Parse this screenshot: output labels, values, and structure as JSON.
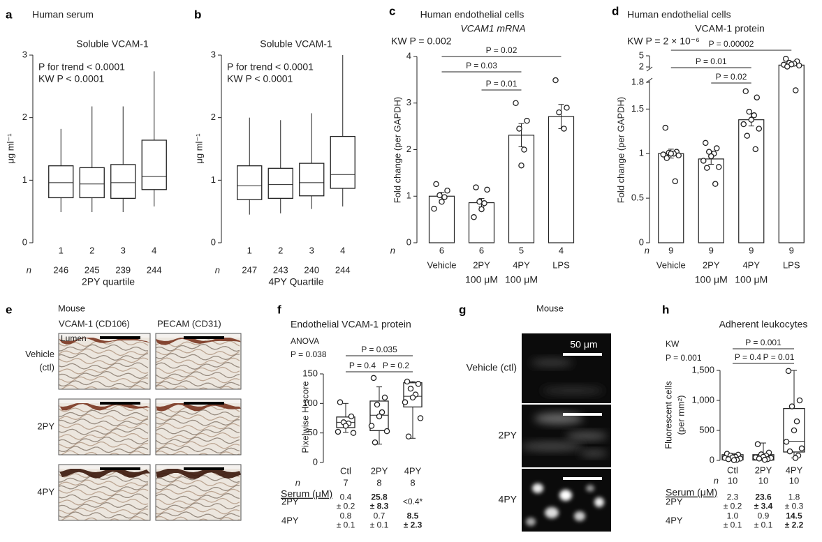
{
  "chart_data": [
    {
      "type": "box",
      "label": "a",
      "title": "Human serum",
      "subtitle": "Soluble VCAM-1",
      "annotations": [
        "P for trend < 0.0001",
        "KW P < 0.0001"
      ],
      "ylabel": "μg ml⁻¹",
      "ylim": [
        0,
        3
      ],
      "yticks": [
        0,
        1,
        2,
        3
      ],
      "categories": [
        "1",
        "2",
        "3",
        "4"
      ],
      "n_label": "n",
      "n": [
        246,
        245,
        239,
        244
      ],
      "xlabel": "2PY quartile",
      "boxes": [
        {
          "min": 0.49,
          "q1": 0.72,
          "median": 0.96,
          "q3": 1.23,
          "max": 1.82
        },
        {
          "min": 0.49,
          "q1": 0.72,
          "median": 0.94,
          "q3": 1.2,
          "max": 2.18
        },
        {
          "min": 0.49,
          "q1": 0.71,
          "median": 0.96,
          "q3": 1.25,
          "max": 2.18
        },
        {
          "min": 0.58,
          "q1": 0.85,
          "median": 1.06,
          "q3": 1.64,
          "max": 2.74
        }
      ]
    },
    {
      "type": "box",
      "label": "b",
      "subtitle": "Soluble VCAM-1",
      "annotations": [
        "P for trend < 0.0001",
        "KW P < 0.0001"
      ],
      "ylabel": "μg ml⁻¹",
      "ylim": [
        0,
        3
      ],
      "yticks": [
        0,
        1,
        2,
        3
      ],
      "categories": [
        "1",
        "2",
        "3",
        "4"
      ],
      "n_label": "n",
      "n": [
        247,
        243,
        240,
        244
      ],
      "xlabel": "4PY Quartile",
      "boxes": [
        {
          "min": 0.45,
          "q1": 0.69,
          "median": 0.91,
          "q3": 1.23,
          "max": 2.0
        },
        {
          "min": 0.47,
          "q1": 0.71,
          "median": 0.93,
          "q3": 1.19,
          "max": 1.96
        },
        {
          "min": 0.54,
          "q1": 0.75,
          "median": 0.96,
          "q3": 1.27,
          "max": 2.07
        },
        {
          "min": 0.58,
          "q1": 0.87,
          "median": 1.09,
          "q3": 1.7,
          "max": 3.0
        }
      ]
    },
    {
      "type": "bar",
      "label": "c",
      "title": "Human endothelial cells",
      "subtitle": "VCAM1 mRNA",
      "annotations": [
        "KW P = 0.002"
      ],
      "ylabel": "Fold change (per GAPDH)",
      "ylim": [
        0,
        4
      ],
      "yticks": [
        0,
        1,
        2,
        3,
        4
      ],
      "categories": [
        "Vehicle",
        "2PY",
        "4PY",
        "LPS"
      ],
      "doses": [
        null,
        "100 μM",
        "100 μM",
        null
      ],
      "n_label": "n",
      "n": [
        6,
        6,
        5,
        4
      ],
      "values": [
        1.0,
        0.86,
        2.31,
        2.71
      ],
      "errors": [
        0.08,
        0.09,
        0.25,
        0.26
      ],
      "points": [
        [
          1.26,
          1.12,
          1.02,
          0.98,
          0.88,
          0.73
        ],
        [
          1.19,
          1.14,
          0.88,
          0.85,
          0.72,
          0.55
        ],
        [
          3.0,
          2.62,
          2.45,
          2.0,
          1.66
        ],
        [
          3.49,
          2.9,
          2.8,
          2.45
        ]
      ],
      "comparisons": [
        {
          "between": [
            "Vehicle",
            "LPS"
          ],
          "label": "P = 0.02"
        },
        {
          "between": [
            "Vehicle",
            "4PY"
          ],
          "label": "P = 0.03"
        },
        {
          "between": [
            "2PY",
            "4PY"
          ],
          "label": "P = 0.01"
        }
      ]
    },
    {
      "type": "bar",
      "label": "d",
      "title": "Human endothelial cells",
      "subtitle": "VCAM-1 protein",
      "annotations": [
        "KW P = 2 × 10⁻⁶"
      ],
      "ylabel": "Fold change (per GAPDH)",
      "ylim": [
        0,
        5
      ],
      "ybreak": [
        1.8,
        2
      ],
      "yticks": [
        0,
        0.5,
        1,
        1.5,
        1.8,
        2,
        5
      ],
      "categories": [
        "Vehicle",
        "2PY",
        "4PY",
        "LPS"
      ],
      "doses": [
        null,
        "100 μM",
        "100 μM",
        null
      ],
      "n_label": "n",
      "n": [
        9,
        9,
        9,
        9
      ],
      "values": [
        1.0,
        0.94,
        1.38,
        2.5
      ],
      "errors": [
        0.05,
        0.06,
        0.07,
        0.3
      ],
      "points": [
        [
          1.29,
          1.02,
          1.01,
          1.0,
          1.0,
          0.99,
          0.98,
          0.95,
          0.69
        ],
        [
          1.12,
          1.06,
          1.02,
          1.0,
          0.97,
          0.92,
          0.85,
          0.84,
          0.66
        ],
        [
          1.7,
          1.63,
          1.47,
          1.43,
          1.38,
          1.33,
          1.28,
          1.2,
          1.05
        ],
        [
          4.2,
          3.5,
          3.1,
          2.9,
          2.7,
          2.6,
          2.4,
          2.1,
          1.71
        ]
      ],
      "comparisons": [
        {
          "between": [
            "Vehicle",
            "LPS"
          ],
          "label": "P = 0.00002"
        },
        {
          "between": [
            "Vehicle",
            "4PY"
          ],
          "label": "P = 0.01"
        },
        {
          "between": [
            "2PY",
            "4PY"
          ],
          "label": "P = 0.02"
        }
      ]
    },
    {
      "type": "box",
      "label": "f",
      "title": "Endothelial VCAM-1 protein",
      "annotations": [
        "ANOVA",
        "P = 0.038"
      ],
      "ylabel": "Pixelwise H-score",
      "ylim": [
        0,
        150
      ],
      "yticks": [
        0,
        50,
        100,
        150
      ],
      "categories": [
        "Ctl",
        "2PY",
        "4PY"
      ],
      "n_label": "n",
      "n": [
        7,
        8,
        8
      ],
      "boxes": [
        {
          "min": 51,
          "q1": 59,
          "median": 68,
          "q3": 77,
          "max": 100
        },
        {
          "min": 31,
          "q1": 54,
          "median": 80,
          "q3": 104,
          "max": 128
        },
        {
          "min": 41,
          "q1": 94,
          "median": 112,
          "q3": 135,
          "max": 137
        }
      ],
      "points": [
        [
          102,
          78,
          68,
          66,
          62,
          52,
          50
        ],
        [
          143,
          110,
          98,
          85,
          78,
          62,
          53,
          34
        ],
        [
          137,
          133,
          125,
          115,
          110,
          102,
          75,
          44
        ]
      ],
      "comparisons": [
        {
          "between": [
            "Ctl",
            "4PY"
          ],
          "label": "P = 0.035"
        },
        {
          "between": [
            "Ctl",
            "2PY"
          ],
          "label": "P = 0.4"
        },
        {
          "between": [
            "2PY",
            "4PY"
          ],
          "label": "P = 0.2"
        }
      ],
      "serum_table": {
        "header": "Serum (μM)",
        "rows": [
          {
            "label": "2PY",
            "cells": [
              [
                "0.4",
                "± 0.2"
              ],
              [
                "25.8",
                "± 8.3"
              ],
              [
                "<0.4*"
              ]
            ],
            "bold": [
              false,
              true,
              false
            ]
          },
          {
            "label": "4PY",
            "cells": [
              [
                "0.8",
                "± 0.1"
              ],
              [
                "0.7",
                "± 0.1"
              ],
              [
                "8.5",
                "± 2.3"
              ]
            ],
            "bold": [
              false,
              false,
              true
            ]
          }
        ]
      }
    },
    {
      "type": "box",
      "label": "h",
      "title": "Adherent leukocytes",
      "annotations": [
        "KW",
        "P = 0.001"
      ],
      "ylabel": [
        "Fluorescent cells",
        "(per mm²)"
      ],
      "ylim": [
        0,
        1500
      ],
      "yticks": [
        0,
        500,
        {
          "value": 1000,
          "label": "1,000"
        },
        {
          "value": 1500,
          "label": "1,500"
        }
      ],
      "categories": [
        "Ctl",
        "2PY",
        "4PY"
      ],
      "n_label": "n",
      "n": [
        10,
        10,
        10
      ],
      "boxes": [
        {
          "min": 0,
          "q1": 10,
          "median": 45,
          "q3": 95,
          "max": 115
        },
        {
          "min": 0,
          "q1": 5,
          "median": 46,
          "q3": 95,
          "max": 290
        },
        {
          "min": 40,
          "q1": 140,
          "median": 320,
          "q3": 865,
          "max": 1500
        }
      ],
      "points": [
        [
          110,
          95,
          80,
          60,
          50,
          40,
          30,
          20,
          10,
          5
        ],
        [
          270,
          130,
          100,
          80,
          60,
          50,
          40,
          30,
          20,
          10
        ],
        [
          1490,
          1000,
          900,
          650,
          500,
          310,
          200,
          150,
          80,
          40
        ]
      ],
      "comparisons": [
        {
          "between": [
            "Ctl",
            "4PY"
          ],
          "label": "P = 0.001"
        },
        {
          "between": [
            "Ctl",
            "2PY"
          ],
          "label": "P = 0.4"
        },
        {
          "between": [
            "2PY",
            "4PY"
          ],
          "label": "P = 0.01"
        }
      ],
      "serum_table": {
        "header": "Serum (μM)",
        "rows": [
          {
            "label": "2PY",
            "cells": [
              [
                "2.3",
                "± 0.2"
              ],
              [
                "23.6",
                "± 3.4"
              ],
              [
                "1.8",
                "± 0.3"
              ]
            ],
            "bold": [
              false,
              true,
              false
            ]
          },
          {
            "label": "4PY",
            "cells": [
              [
                "1.0",
                "± 0.1"
              ],
              [
                "0.9",
                "± 0.1"
              ],
              [
                "14.5",
                "± 2.2"
              ]
            ],
            "bold": [
              false,
              false,
              true
            ]
          }
        ]
      }
    }
  ],
  "images": [
    {
      "label": "e",
      "title": "Mouse",
      "columns": [
        "VCAM-1 (CD106)",
        "PECAM (CD31)"
      ],
      "lumen": "Lumen",
      "rows": [
        [
          "Vehicle",
          "(ctl)"
        ],
        [
          "2PY"
        ],
        [
          "4PY"
        ]
      ]
    },
    {
      "label": "g",
      "title": "Mouse",
      "rows": [
        "Vehicle (ctl)",
        "2PY",
        "4PY"
      ],
      "scale_bar": "50 μm"
    }
  ]
}
